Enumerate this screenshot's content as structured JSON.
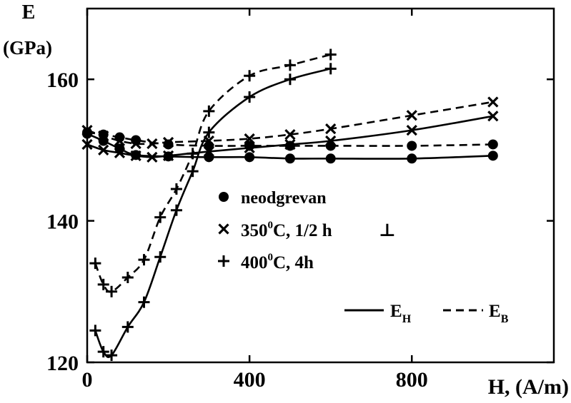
{
  "chart_data": {
    "type": "line",
    "ylabel_line1": "E",
    "ylabel_line2": "(GPa)",
    "xlabel": "H, (A/m)",
    "xlim": [
      0,
      1150
    ],
    "ylim": [
      120,
      170
    ],
    "x_ticks": [
      0,
      400,
      800
    ],
    "y_ticks": [
      120,
      140,
      160
    ],
    "x_tick_labels": [
      "0",
      "400",
      "800"
    ],
    "y_tick_labels": [
      "120",
      "140",
      "160"
    ],
    "grid": false,
    "legend": {
      "placement": "center",
      "markers": [
        {
          "marker": "dot",
          "label": "neodgrevan",
          "note": ""
        },
        {
          "marker": "x",
          "label_main": "350",
          "label_sup": "0",
          "label_rest": "C, 1/2 h",
          "note": "⊥"
        },
        {
          "marker": "plus",
          "label_main": "400",
          "label_sup": "0",
          "label_rest": "C, 4h",
          "note": ""
        }
      ],
      "lines": [
        {
          "style": "solid",
          "label": "E",
          "sub": "H"
        },
        {
          "style": "dashed",
          "label": "E",
          "sub": "B"
        }
      ]
    },
    "series": [
      {
        "marker": "dot",
        "style": "solid",
        "x": [
          0,
          40,
          80,
          120,
          200,
          300,
          400,
          500,
          600,
          800,
          1000
        ],
        "y": [
          152.3,
          151.3,
          150.2,
          149.3,
          149.1,
          149.0,
          149.0,
          148.8,
          148.8,
          148.8,
          149.2
        ]
      },
      {
        "marker": "dot",
        "style": "dashed",
        "x": [
          0,
          40,
          80,
          120,
          200,
          300,
          400,
          500,
          600,
          800,
          1000
        ],
        "y": [
          152.5,
          152.2,
          151.8,
          151.4,
          150.8,
          150.6,
          150.6,
          150.6,
          150.6,
          150.6,
          150.8
        ]
      },
      {
        "marker": "x",
        "style": "solid",
        "x": [
          0,
          40,
          80,
          120,
          160,
          200,
          300,
          400,
          500,
          600,
          800,
          1000
        ],
        "y": [
          150.8,
          150.0,
          149.6,
          149.2,
          149.0,
          149.2,
          149.8,
          150.3,
          150.8,
          151.3,
          152.8,
          154.8
        ]
      },
      {
        "marker": "x",
        "style": "dashed",
        "x": [
          0,
          40,
          80,
          120,
          160,
          200,
          300,
          400,
          500,
          600,
          800,
          1000
        ],
        "y": [
          152.8,
          152.0,
          151.3,
          150.9,
          150.9,
          151.1,
          151.3,
          151.6,
          152.2,
          153.0,
          154.9,
          156.8
        ]
      },
      {
        "marker": "plus",
        "style": "solid",
        "x": [
          20,
          40,
          60,
          100,
          140,
          180,
          220,
          260,
          300,
          400,
          500,
          600
        ],
        "y": [
          124.5,
          121.5,
          121.0,
          125.0,
          128.5,
          134.9,
          141.5,
          147.0,
          152.5,
          157.5,
          160.0,
          161.5
        ]
      },
      {
        "marker": "plus",
        "style": "dashed",
        "x": [
          20,
          40,
          60,
          100,
          140,
          180,
          220,
          260,
          300,
          400,
          500,
          600
        ],
        "y": [
          134.0,
          131.0,
          130.0,
          132.0,
          134.5,
          140.5,
          144.5,
          149.5,
          155.5,
          160.5,
          162.0,
          163.5
        ]
      }
    ]
  }
}
